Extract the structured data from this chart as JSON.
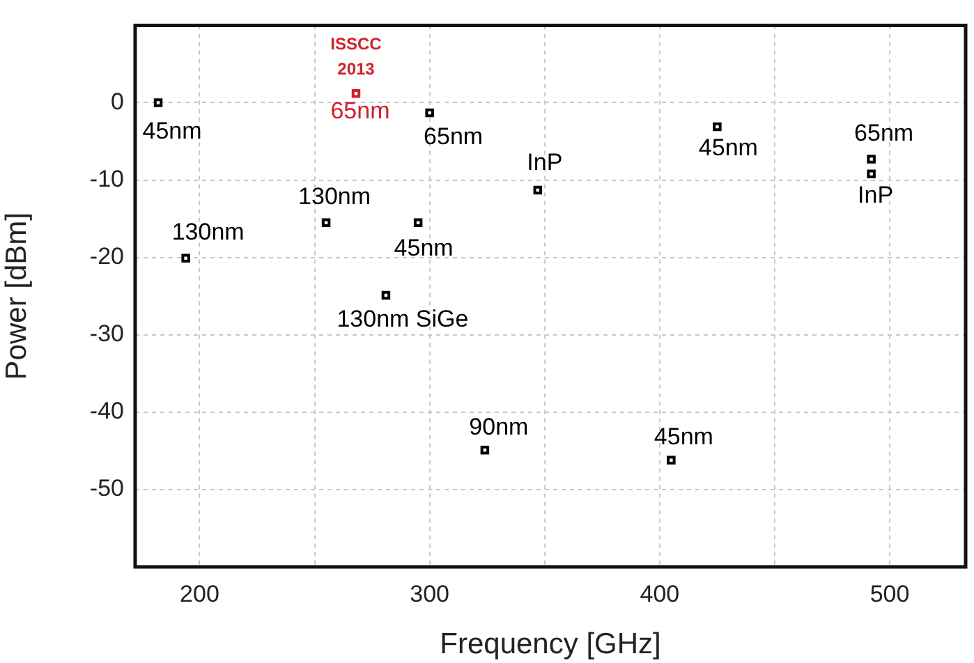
{
  "chart_data": {
    "type": "scatter",
    "xlabel": "Frequency [GHz]",
    "ylabel": "Power [dBm]",
    "series": [
      {
        "color": "#000000",
        "x": [
          182,
          300,
          347,
          255,
          295,
          194,
          281,
          425,
          492,
          492,
          324,
          405
        ],
        "values": [
          0,
          -1.3,
          -11.3,
          -15.5,
          -15.5,
          -20.1,
          -24.9,
          -3.1,
          -7.3,
          -9.2,
          -44.9,
          -46.2
        ]
      },
      {
        "color": "#d0202a",
        "x": [
          268
        ],
        "values": [
          1.2
        ]
      }
    ],
    "xlim": [
      172,
      533
    ],
    "xticks": [
      200,
      {
        "value": 250,
        "label": null
      },
      300,
      {
        "value": 350,
        "label": null
      },
      400,
      {
        "value": 450,
        "label": null
      },
      500
    ],
    "ylim": [
      -60,
      10
    ],
    "yticks": [
      0,
      -10,
      -20,
      -30,
      -40,
      -50
    ],
    "grid": true,
    "legend": false,
    "marker": "square",
    "annotations": [
      {
        "text": "45nm",
        "x": 182,
        "y": 0
      },
      {
        "text": "ISSCC 2013",
        "x": 268,
        "y": 1.2
      },
      {
        "text": "65nm",
        "x": 268,
        "y": 1.2
      },
      {
        "text": "65nm",
        "x": 300,
        "y": -1.3
      },
      {
        "text": "InP",
        "x": 347,
        "y": -11.3
      },
      {
        "text": "130nm",
        "x": 255,
        "y": -15.5
      },
      {
        "text": "45nm",
        "x": 295,
        "y": -15.5
      },
      {
        "text": "130nm",
        "x": 194,
        "y": -20.1
      },
      {
        "text": "130nm SiGe",
        "x": 281,
        "y": -24.9
      },
      {
        "text": "45nm",
        "x": 425,
        "y": -3.1
      },
      {
        "text": "65nm",
        "x": 492,
        "y": -7.3
      },
      {
        "text": "InP",
        "x": 492,
        "y": -9.2
      },
      {
        "text": "90nm",
        "x": 324,
        "y": -44.9
      },
      {
        "text": "45nm",
        "x": 405,
        "y": -46.2
      }
    ]
  }
}
